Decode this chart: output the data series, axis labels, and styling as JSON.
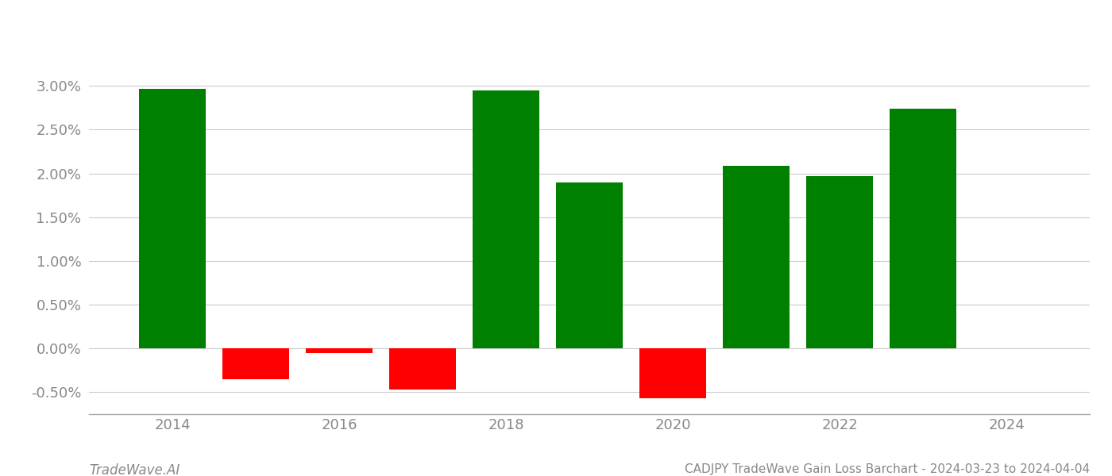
{
  "years": [
    2014,
    2015,
    2016,
    2017,
    2018,
    2019,
    2020,
    2021,
    2022,
    2023
  ],
  "values": [
    0.0297,
    -0.0035,
    -0.0005,
    -0.0047,
    0.0295,
    0.019,
    -0.0057,
    0.0209,
    0.0197,
    0.0274
  ],
  "bar_colors": [
    "#008000",
    "#ff0000",
    "#ff0000",
    "#ff0000",
    "#008000",
    "#008000",
    "#ff0000",
    "#008000",
    "#008000",
    "#008000"
  ],
  "title": "CADJPY TradeWave Gain Loss Barchart - 2024-03-23 to 2024-04-04",
  "watermark": "TradeWave.AI",
  "xlim": [
    2013.0,
    2025.0
  ],
  "ylim": [
    -0.0075,
    0.036
  ],
  "yticks": [
    -0.005,
    0.0,
    0.005,
    0.01,
    0.015,
    0.02,
    0.025,
    0.03
  ],
  "ytick_labels": [
    "-0.50%",
    "0.00%",
    "0.50%",
    "1.00%",
    "1.50%",
    "2.00%",
    "2.50%",
    "3.00%"
  ],
  "xticks": [
    2014,
    2016,
    2018,
    2020,
    2022,
    2024
  ],
  "background_color": "#ffffff",
  "bar_width": 0.8,
  "grid_color": "#cccccc",
  "title_fontsize": 11,
  "watermark_fontsize": 12,
  "tick_fontsize": 13,
  "tick_color": "#888888"
}
